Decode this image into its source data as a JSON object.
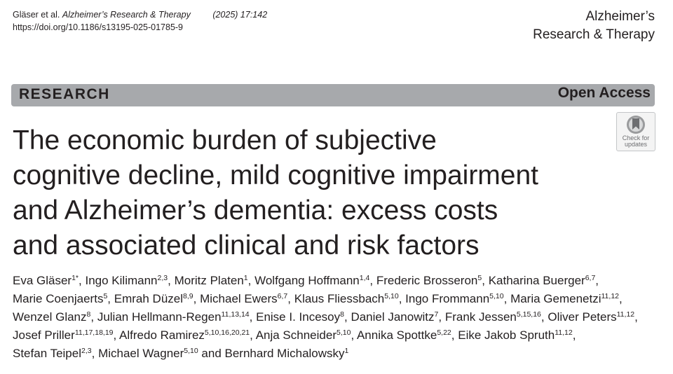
{
  "header": {
    "citation_authors": "Gläser et al.",
    "citation_journal": "Alzheimer’s Research & Therapy",
    "citation_volume": "(2025) 17:142",
    "doi": "https://doi.org/10.1186/s13195-025-01785-9",
    "journal_line1": "Alzheimer’s",
    "journal_line2": "Research & Therapy"
  },
  "banner": {
    "label": "RESEARCH",
    "access": "Open Access"
  },
  "check_updates": {
    "line1": "Check for",
    "line2": "updates"
  },
  "title": {
    "lines": [
      "The economic burden of subjective",
      "cognitive decline, mild cognitive impairment",
      "and Alzheimer’s dementia: excess costs",
      "and associated clinical and risk factors"
    ]
  },
  "authors": [
    {
      "name": "Eva Gläser",
      "sup": "1*"
    },
    {
      "name": "Ingo Kilimann",
      "sup": "2,3"
    },
    {
      "name": "Moritz Platen",
      "sup": "1"
    },
    {
      "name": "Wolfgang Hoffmann",
      "sup": "1,4"
    },
    {
      "name": "Frederic Brosseron",
      "sup": "5"
    },
    {
      "name": "Katharina Buerger",
      "sup": "6,7"
    },
    {
      "name": "Marie Coenjaerts",
      "sup": "5"
    },
    {
      "name": "Emrah Düzel",
      "sup": "8,9"
    },
    {
      "name": "Michael Ewers",
      "sup": "6,7"
    },
    {
      "name": "Klaus Fliessbach",
      "sup": "5,10"
    },
    {
      "name": "Ingo Frommann",
      "sup": "5,10"
    },
    {
      "name": "Maria Gemenetzi",
      "sup": "11,12"
    },
    {
      "name": "Wenzel Glanz",
      "sup": "8"
    },
    {
      "name": "Julian Hellmann-Regen",
      "sup": "11,13,14"
    },
    {
      "name": "Enise I. Incesoy",
      "sup": "8"
    },
    {
      "name": "Daniel Janowitz",
      "sup": "7"
    },
    {
      "name": "Frank Jessen",
      "sup": "5,15,16"
    },
    {
      "name": "Oliver Peters",
      "sup": "11,12"
    },
    {
      "name": "Josef Priller",
      "sup": "11,17,18,19"
    },
    {
      "name": "Alfredo Ramirez",
      "sup": "5,10,16,20,21"
    },
    {
      "name": "Anja Schneider",
      "sup": "5,10"
    },
    {
      "name": "Annika Spottke",
      "sup": "5,22"
    },
    {
      "name": "Eike Jakob Spruth",
      "sup": "11,12"
    },
    {
      "name": "Stefan Teipel",
      "sup": "2,3"
    },
    {
      "name": "Michael Wagner",
      "sup": "5,10"
    },
    {
      "name": "Bernhard Michalowsky",
      "sup": "1"
    }
  ],
  "authors_last_joiner": "and"
}
